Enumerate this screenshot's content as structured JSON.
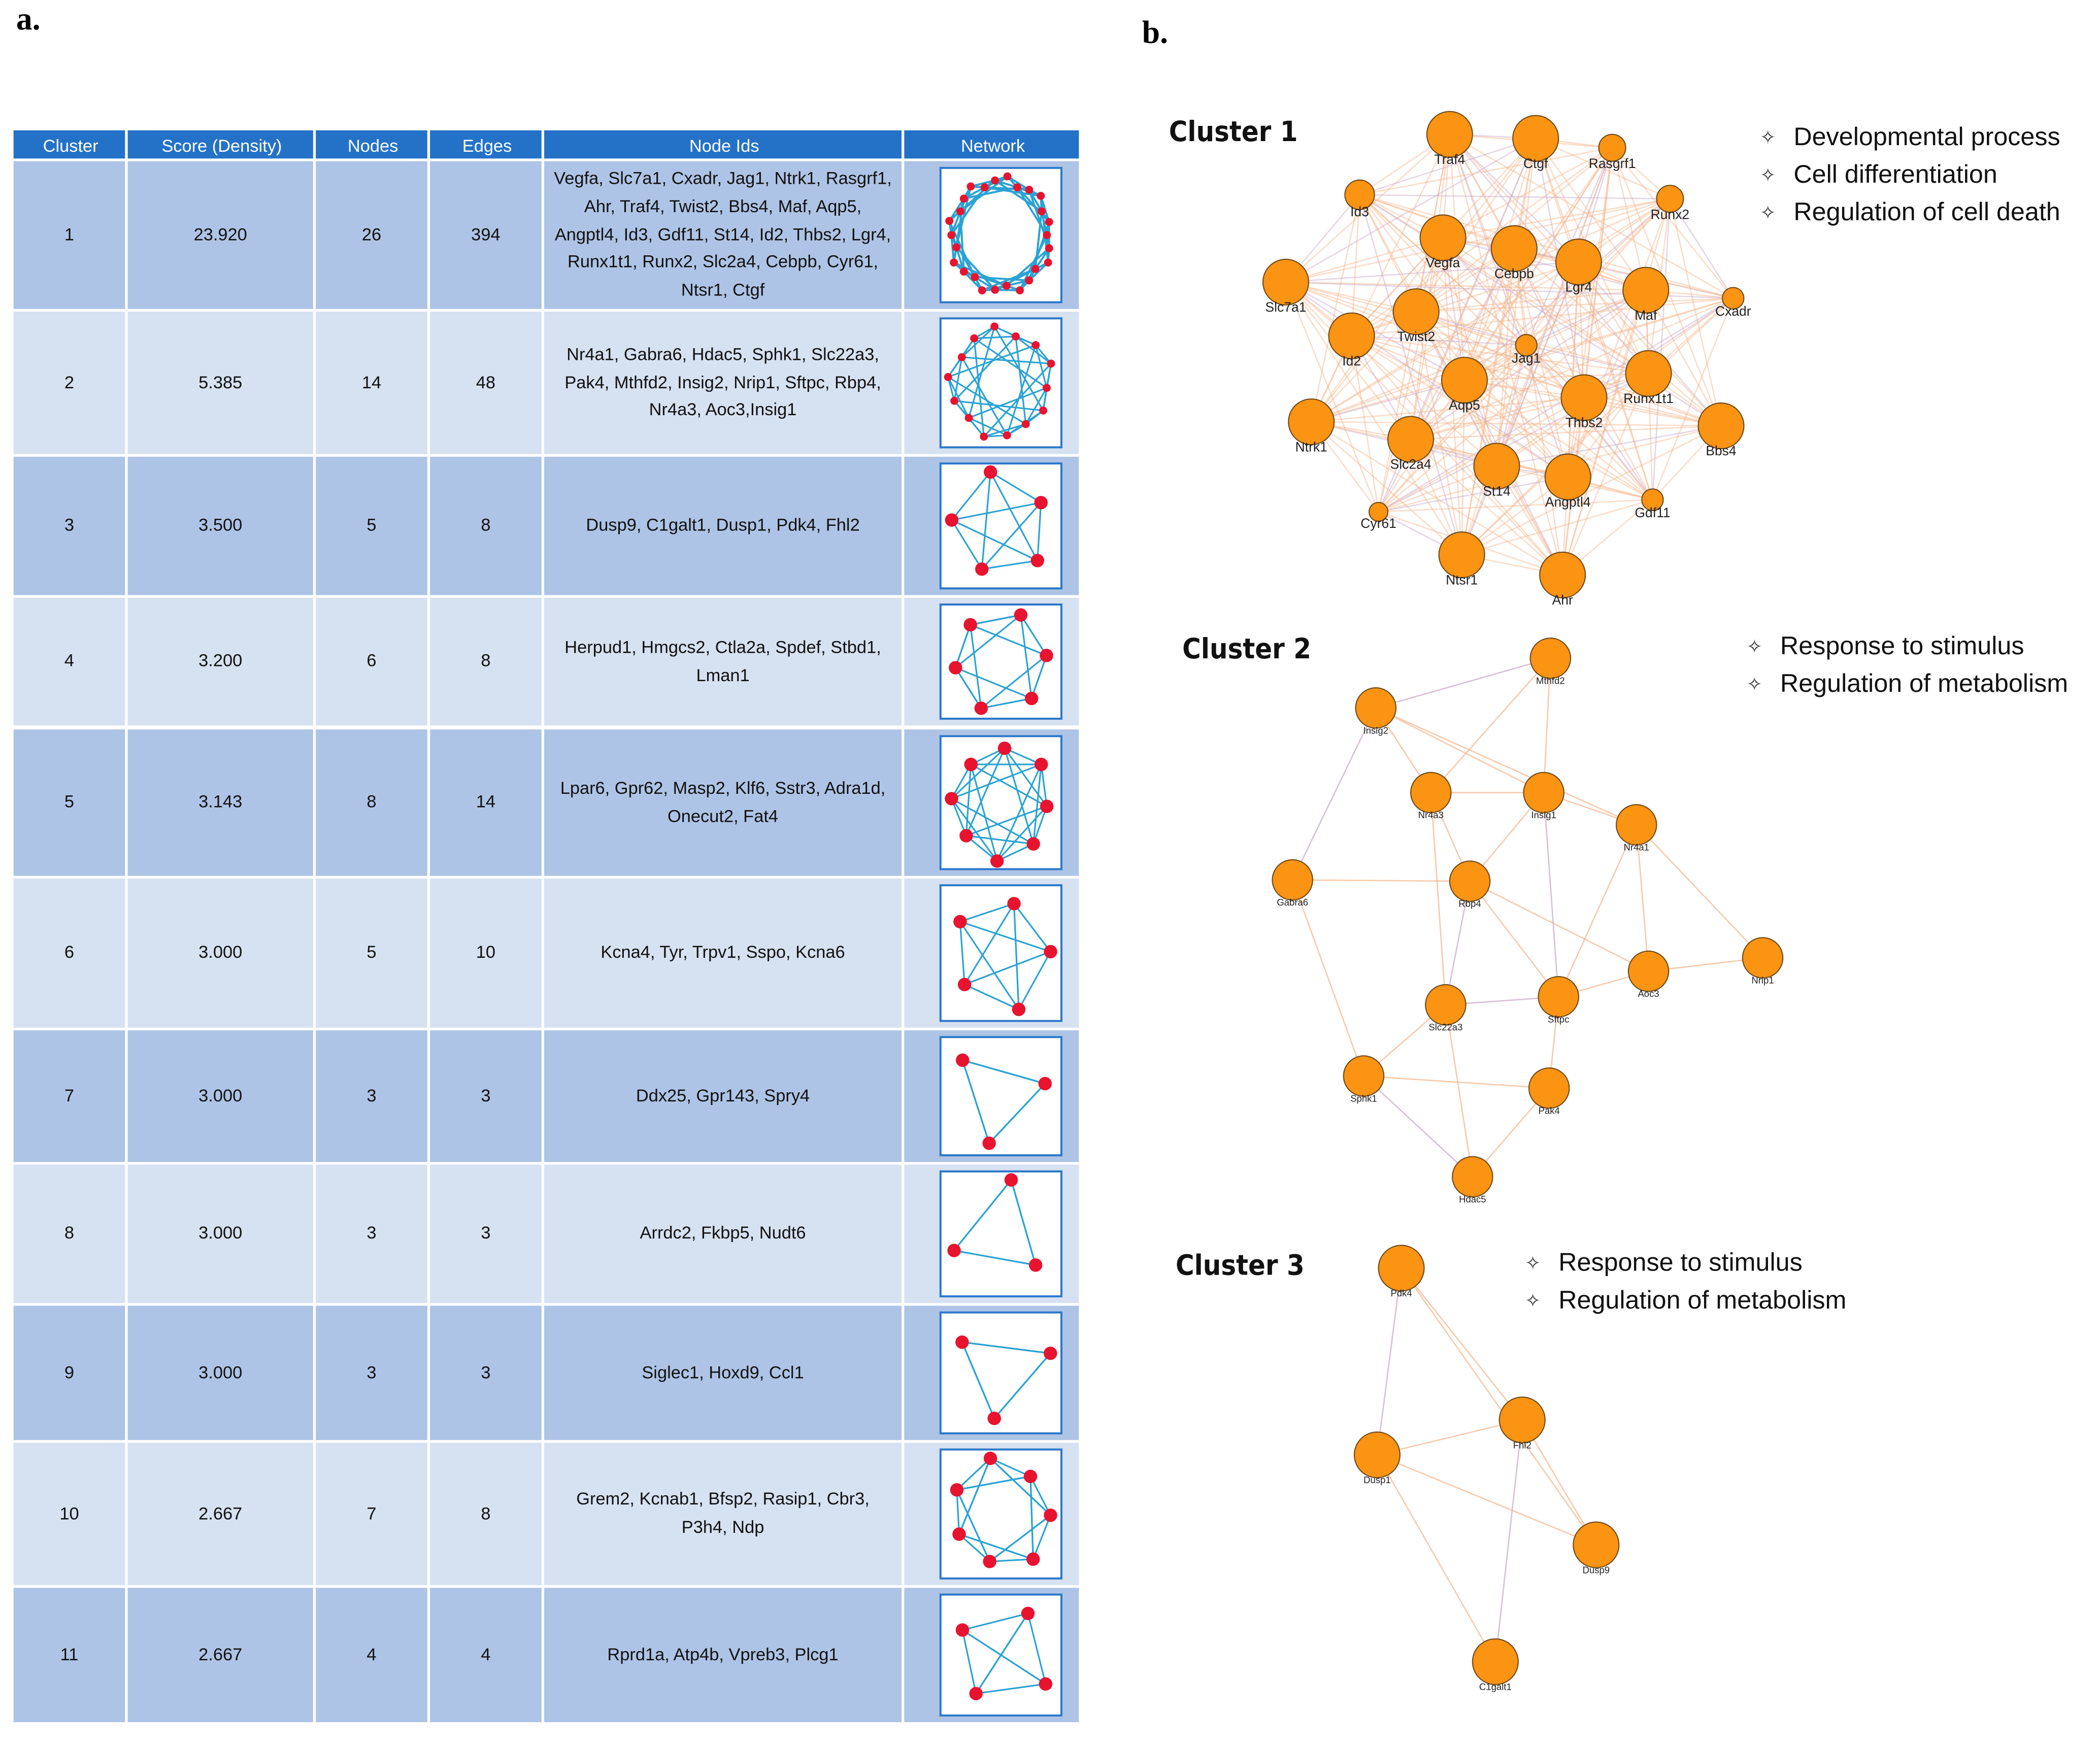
{
  "panel_a": {
    "label": "a.",
    "table": {
      "header": [
        "Cluster",
        "Score (Density)",
        "Nodes",
        "Edges",
        "Node Ids",
        "Network"
      ],
      "rows": [
        [
          "1",
          "23.920",
          "26",
          "394",
          "Vegfa, Slc7a1, Cxadr, Jag1, Ntrk1, Rasgrf1, Ahr, Traf4, Twist2, Bbs4, Maf, Aqp5, Angptl4, Id3, Gdf11, St14, Id2, Thbs2, Lgr4, Runx1t1, Runx2, Slc2a4, Cebpb, Cyr61, Ntsr1, Ctgf"
        ],
        [
          "2",
          "5.385",
          "14",
          "48",
          "Nr4a1, Gabra6, Hdac5, Sphk1, Slc22a3, Pak4, Mthfd2, Insig2, Nrip1, Sftpc, Rbp4, Nr4a3, Aoc3,Insig1"
        ],
        [
          "3",
          "3.500",
          "5",
          "8",
          "Dusp9, C1galt1, Dusp1, Pdk4, Fhl2"
        ],
        [
          "4",
          "3.200",
          "6",
          "8",
          "Herpud1, Hmgcs2, Ctla2a, Spdef, Stbd1, Lman1"
        ],
        [
          "5",
          "3.143",
          "8",
          "14",
          "Lpar6, Gpr62, Masp2, Klf6, Sstr3, Adra1d, Onecut2, Fat4"
        ],
        [
          "6",
          "3.000",
          "5",
          "10",
          "Kcna4, Tyr, Trpv1, Sspo, Kcna6"
        ],
        [
          "7",
          "3.000",
          "3",
          "3",
          "Ddx25, Gpr143, Spry4"
        ],
        [
          "8",
          "3.000",
          "3",
          "3",
          "Arrdc2, Fkbp5, Nudt6"
        ],
        [
          "9",
          "3.000",
          "3",
          "3",
          "Siglec1, Hoxd9, Ccl1"
        ],
        [
          "10",
          "2.667",
          "7",
          "8",
          "Grem2, Kcnab1, Bfsp2, Rasip1, Cbr3, P3h4, Ndp"
        ],
        [
          "11",
          "2.667",
          "4",
          "4",
          "Rprd1a, Atp4b, Vpreb3, Plcg1"
        ]
      ]
    }
  },
  "panel_b": {
    "label": "b.",
    "clusters": [
      {
        "title": "Cluster 1",
        "terms": [
          "Developmental process",
          "Cell differentiation",
          "Regulation of cell death"
        ],
        "nodes": [
          "Traf4",
          "Ctgf",
          "Rasgrf1",
          "Id3",
          "Runx2",
          "Vegfa",
          "Cebpb",
          "Lgr4",
          "Maf",
          "Cxadr",
          "Slc7a1",
          "Twist2",
          "Id2",
          "Jag1",
          "Runx1t1",
          "Aqp5",
          "Thbs2",
          "Bbs4",
          "Ntrk1",
          "Slc2a4",
          "St14",
          "Angptl4",
          "Gdf11",
          "Cyr61",
          "Ntsr1",
          "Ahr"
        ]
      },
      {
        "title": "Cluster 2",
        "terms": [
          "Response to stimulus",
          "Regulation of metabolism"
        ],
        "nodes": [
          "Mthfd2",
          "Insig2",
          "Nr4a3",
          "Insig1",
          "Nr4a1",
          "Gabra6",
          "Rbp4",
          "Nrip1",
          "Aoc3",
          "Slc22a3",
          "Sftpc",
          "Sphk1",
          "Pak4",
          "Hdac5"
        ]
      },
      {
        "title": "Cluster 3",
        "terms": [
          "Response to stimulus",
          "Regulation of metabolism"
        ],
        "nodes": [
          "Pdk4",
          "Fhl2",
          "Dusp1",
          "Dusp9",
          "C1galt1"
        ]
      }
    ]
  }
}
